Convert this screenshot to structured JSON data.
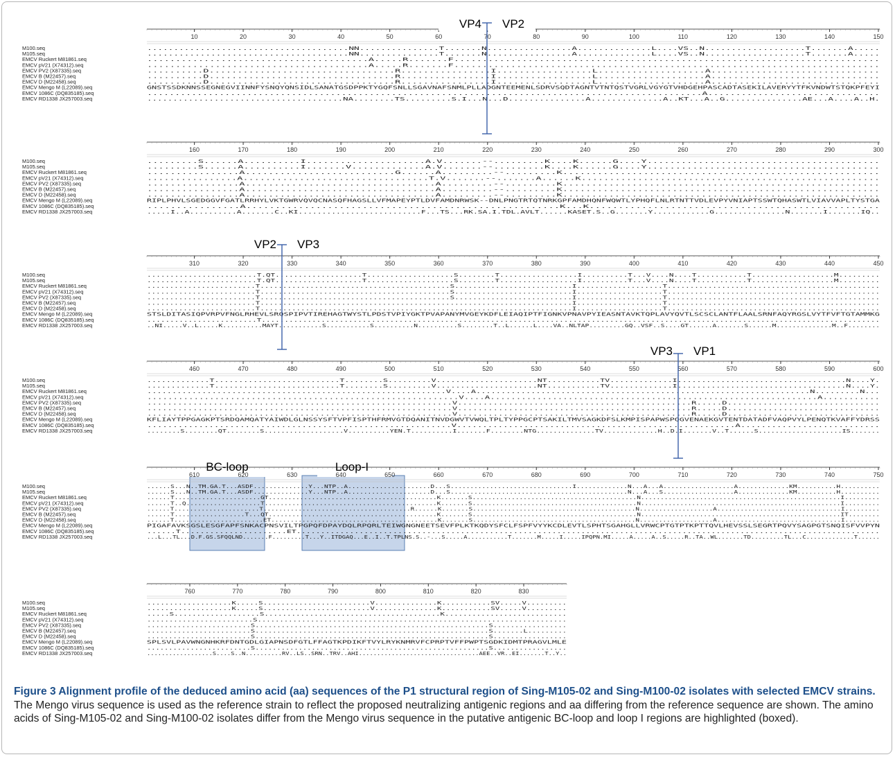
{
  "figure": {
    "caption_title": "Figure 3 Alignment profile of the deduced amino acid (aa) sequences of the P1 structural region of Sing-M105-02 and Sing-M100-02 isolates with selected EMCV strains.",
    "caption_body": "The Mengo virus sequence is used as the reference strain to reflect the proposed neutralizing antigenic regions and aa differing from the reference sequence are shown. The amino acids of Sing-M105-02 and Sing-M100-02 isolates differ from the Mengo virus sequence in the putative antigenic BC-loop and loop I regions are highlighted (boxed)."
  },
  "alignment": {
    "sequence_names": [
      "M100.seq",
      "M105.seq",
      "EMCV Ruckert M81861.seq",
      "EMCV pV21 (X74312).seq",
      "EMCV PV2 (X87335).seq",
      "EMCV B (M22457).seq",
      "EMCV D (M22458).seq",
      "EMCV Mengo M (L22089).seq",
      "EMCV 1086C (DQ835185).seq",
      "EMCV RD1338 JX257003.seq"
    ],
    "blocks": [
      {
        "ticks": [
          "10",
          "20",
          "30",
          "40",
          "50",
          "60",
          "70",
          "80",
          "90",
          "100",
          "110",
          "120",
          "130",
          "140",
          "150"
        ],
        "rows": [
          "......................................NN...............T.......N................A..............L....VS..N...................T.......A.....",
          "......................................NN...............T.......N................A..............L....VS..N...................T.......A.....",
          ".......................................A.....R.......F...........................................................................",
          ".......................................A.....R.......F...........................................................................",
          "..........D.................................R................I.................L...................A..............................",
          "..........D.................................R................I.................L...................A..............................",
          "..........D.................................R................I.................L...................A..............................",
          "GNSTSSDKNNSSEGNEGVIINNFYSNQYQNSIDLSANATGSDPPKTYGQFSNLLSGAVNAFSNMLPLLADGNTEEMENLSDRVSQDTAGNTVTNTQSTVGRLVGYGTVHDGEHPASCADTASEKILAVERYYTFKVNDWTSTQKPFEYI",
          "....................................................................................................A...............................",
          "......................................NA........TS.........S.I...N...D...............A..............A..KT...A..G...............AE...A....A..H."
        ]
      },
      {
        "ticks": [
          "160",
          "170",
          "180",
          "190",
          "200",
          "210",
          "220",
          "230",
          "240",
          "250",
          "260",
          "270",
          "280",
          "290",
          "300"
        ],
        "rows": [
          ".........S......A..........I.....................A.V.......--.........K....K......G....Y.........................................",
          ".........S......A..........I.......V.............A.V.......--.........K....K......G....Y.........................................",
          "................A..........................G......A.........--.........K.......................................................",
          "................A.................................T.V.......--.......A......K.....................................................",
          "................A.................................A.........--.........K.......................................................",
          "................A.................................A.........--.........K.......................................................",
          "................A.................................A.........--.........K.......................................................",
          "RIPLPHVLSGEDGGVFGATLRRHYLVKTGWRVQVQCNASQFHAGSLLVFMAPEYPTLDVFAMDNRWSK--DNLPNGTRTQTNRKGPFAMDHQNFWQWTLYPHQFLNLRTNTTVDLEVPYVNIAPTSSWTQHASWTLVIAVVAPLTYSTGA",
          "................A......................................................K...K..................................................",
          ".....I..A..........A.......C..KI..........................F...TS...RK.SA.I.TDL.AVLT......KASET.S..G.......Y............G...............N.......I.......IQ.."
        ]
      },
      {
        "ticks": [
          "310",
          "320",
          "330",
          "340",
          "350",
          "360",
          "370",
          "380",
          "390",
          "400",
          "410",
          "420",
          "430",
          "440",
          "450"
        ],
        "rows": [
          "........................T.QT...................T...................S........T.................I..........T...V....N....T...........T..................M.........",
          "........................T.QT...................T...................S........T.................I..........T...V....N....T...........T..................M.........",
          "........................T..........................................S..........................I...................T...............................................",
          "........................T..........................................S..........................I...................T...............................................",
          "........................T..........................................S..........................I...................T...............................................",
          "........................T.....................................................................I...................T...............................................",
          "........................T.....................................................................I...................T...............................................",
          "STSLDITASIQPVRPVFNGLRHEVLSRQSPIPVTIREHAGTWYSTLPDSTVPIYGKTPVAPANYMVGEYKDFLEIAQIPTFIGNKVPNAVPYIEASNTAVKTQPLAVYQVTLSCSCLANTFLAALSRNFAQYRGSLVYTFVFTGTAMMKG",
          "........................T.......................................................................................................................................",
          "..NI.....V..L.....K..........MAYT...........S...........S..........N..........S........T..L......L....VA..NLTAP.........GQ..VSF..S....GT......A.......S......M..............M..F........"
        ]
      },
      {
        "ticks": [
          "460",
          "470",
          "480",
          "490",
          "500",
          "510",
          "520",
          "530",
          "540",
          "550",
          "560",
          "570",
          "580",
          "590",
          "600"
        ],
        "rows": [
          ".............T..........................T........S.........V.....................NT...........TV.............I...................................N....Y.",
          ".............T..........................T........S.........V.....................NT...........TV.............I...................................N....Y.",
          "............................................................V....A...................................................................N.........N...",
          "............................................................V....A...............................................................A...........",
          "............................................................V..............................................R.....D..............................",
          "............................................................V..............................................R.....D..............................",
          "............................................................V..............................................R.....D..............................",
          "KFLIAYTPPGAGKPTSRDQAMQATYAIWDLGLNSSYSFTVPFISPTHFRMVGTDQANITNVDGWVTVWQLTPLTYPPGCPTSAKILTMVSAGKDFSLKMPISPAPWSPQGVENAEKGVTENTDATADFVAQPVYLPENQTKVAFFYDRSS",
          "...........................................................V......................................................A...........................",
          "........S........QT........S...................V..........YEN.T..........I.......F........NTG..............TV.............H..D.I.......V..T......S....................IS......."
        ]
      },
      {
        "ticks": [
          "610",
          "620",
          "630",
          "640",
          "650",
          "660",
          "670",
          "680",
          "690",
          "700",
          "710",
          "720",
          "730",
          "740",
          "750"
        ],
        "rows": [
          "......S...N..TM.GA.T...ASDF..............Y...NTP..A.....................D...S...............................I.............N...A...A..................A.............KM..........H..........",
          "......S...N..TM.GA.T...ASDF..............Y...NTP..A.....................D...S.............................................N...A...S..................A.............KM..........H..........",
          "......T......................GT...........................................K.......S..........................................N...................................................I.........",
          "......T..Q...................T............................................K.......S..........................................N...................................................I.........",
          "......T......................T......................................R......K.......S..........................................N...................A................................I.........",
          "......T..................T...QT...........................................K.......S..........................................N...................................................IT........",
          "......T.......................ET...........................................K.......S..........................................N...................A................................I.........",
          "PIGAFAVKSGSLESGFAPFSNKACPNSVILTPGPQFDPAYDQLRPQRLTEIWGNGNEETSEVFPLKTKQDYSFCLFSPFVYYKCDLEVTLSPHTSGAHGLLVRWCPTGTPTKPTTQVLHEVSSLSEGRTPQVYSAGPGTSNQISFVVPYN",
          "......T......................ET.........................................................................................................................",
          "...L...TL...D.F.GS.SFQQLND.......F.........T...Y..ITDGAQ...E..I..T.TPLNS.S..-...S.....A...........T.......M.....I.....IPQPN.MI.....A.....A..S.....R..TA..WL.......TD.........TL...C.............T......"
        ]
      },
      {
        "ticks": [
          "760",
          "770",
          "780",
          "790",
          "800",
          "810",
          "820",
          "830"
        ],
        "rows": [
          "...................K.....S........................V..............K...........SV.....V.........",
          "...................K.....S........................V..............K...........SV.....V.........",
          ".....S...................S.......................................K...........................",
          "........................S......................................................................",
          "........................S......................................................S.................",
          "........................S......................................................S.......L.........",
          "........................S......................................................S.................",
          "SPLSVLPAVWNGNHKRFDNTGDLGIAPNSDFGTLFFAGTKPDIKFTVYLRYKNMRVFCPRPTVFFPWPTSGDKIDMTPRAGVLMLE",
          "........................S......................................................S.................",
          "..................S....S..N..........RV..LS..SRN..TRV..AHI.................................AEE..VR..EI.......T..Y.."
        ]
      }
    ],
    "junctions": {
      "vp4_vp2": {
        "left": "VP4",
        "right": "VP2"
      },
      "vp2_vp3": {
        "left": "VP2",
        "right": "VP3"
      },
      "vp3_vp1": {
        "left": "VP3",
        "right": "VP1"
      }
    },
    "regions": {
      "bc_loop": "BC-loop",
      "loop_i": "Loop-I"
    },
    "colors": {
      "highlight_fill": "#c6d5ea",
      "highlight_stroke": "#5a7fb3",
      "marker_line": "#3a5fa8",
      "caption_title": "#1d4f8a"
    }
  }
}
